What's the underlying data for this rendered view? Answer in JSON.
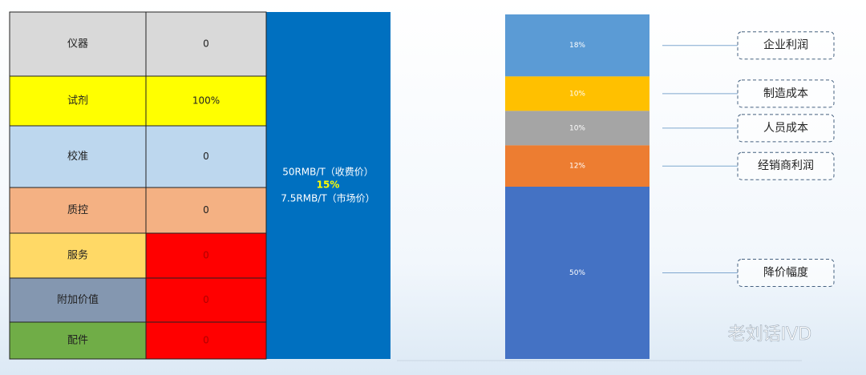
{
  "table": {
    "rows": [
      {
        "cells": [
          "仪器",
          "0"
        ],
        "colors": [
          "#d9d9d9",
          "#d9d9d9"
        ]
      },
      {
        "cells": [
          "试剂",
          "100%"
        ],
        "colors": [
          "#ffff00",
          "#ffff00"
        ]
      },
      {
        "cells": [
          "校准",
          "0"
        ],
        "colors": [
          "#bdd7ee",
          "#bdd7ee"
        ]
      },
      {
        "cells": [
          "质控",
          "0"
        ],
        "colors": [
          "#f4b183",
          "#f4b183"
        ]
      },
      {
        "cells": [
          "服务",
          "0"
        ],
        "colors": [
          "#ffd966",
          "#ff0000"
        ]
      },
      {
        "cells": [
          "附加价值",
          "0"
        ],
        "colors": [
          "#8497b0",
          "#ff0000"
        ]
      },
      {
        "cells": [
          "配件",
          "0"
        ],
        "colors": [
          "#70ad47",
          "#ff0000"
        ]
      }
    ]
  },
  "center_box": {
    "lines": [
      "50RMB/T（收费价）",
      "15%",
      "7.5RMB/T（市场价）"
    ]
  },
  "stack": {
    "segments": [
      {
        "value": 18,
        "value_label": "18%",
        "label": "企业利润",
        "color": "#5b9bd5"
      },
      {
        "value": 10,
        "value_label": "10%",
        "label": "制造成本",
        "color": "#ffc000"
      },
      {
        "value": 10,
        "value_label": "10%",
        "label": "人员成本",
        "color": "#a5a5a5"
      },
      {
        "value": 12,
        "value_label": "12%",
        "label": "经销商利润",
        "color": "#ed7d31"
      },
      {
        "value": 50,
        "value_label": "50%",
        "label": "降价幅度",
        "color": "#4472c4"
      }
    ]
  },
  "watermark": "老刘话IVD"
}
